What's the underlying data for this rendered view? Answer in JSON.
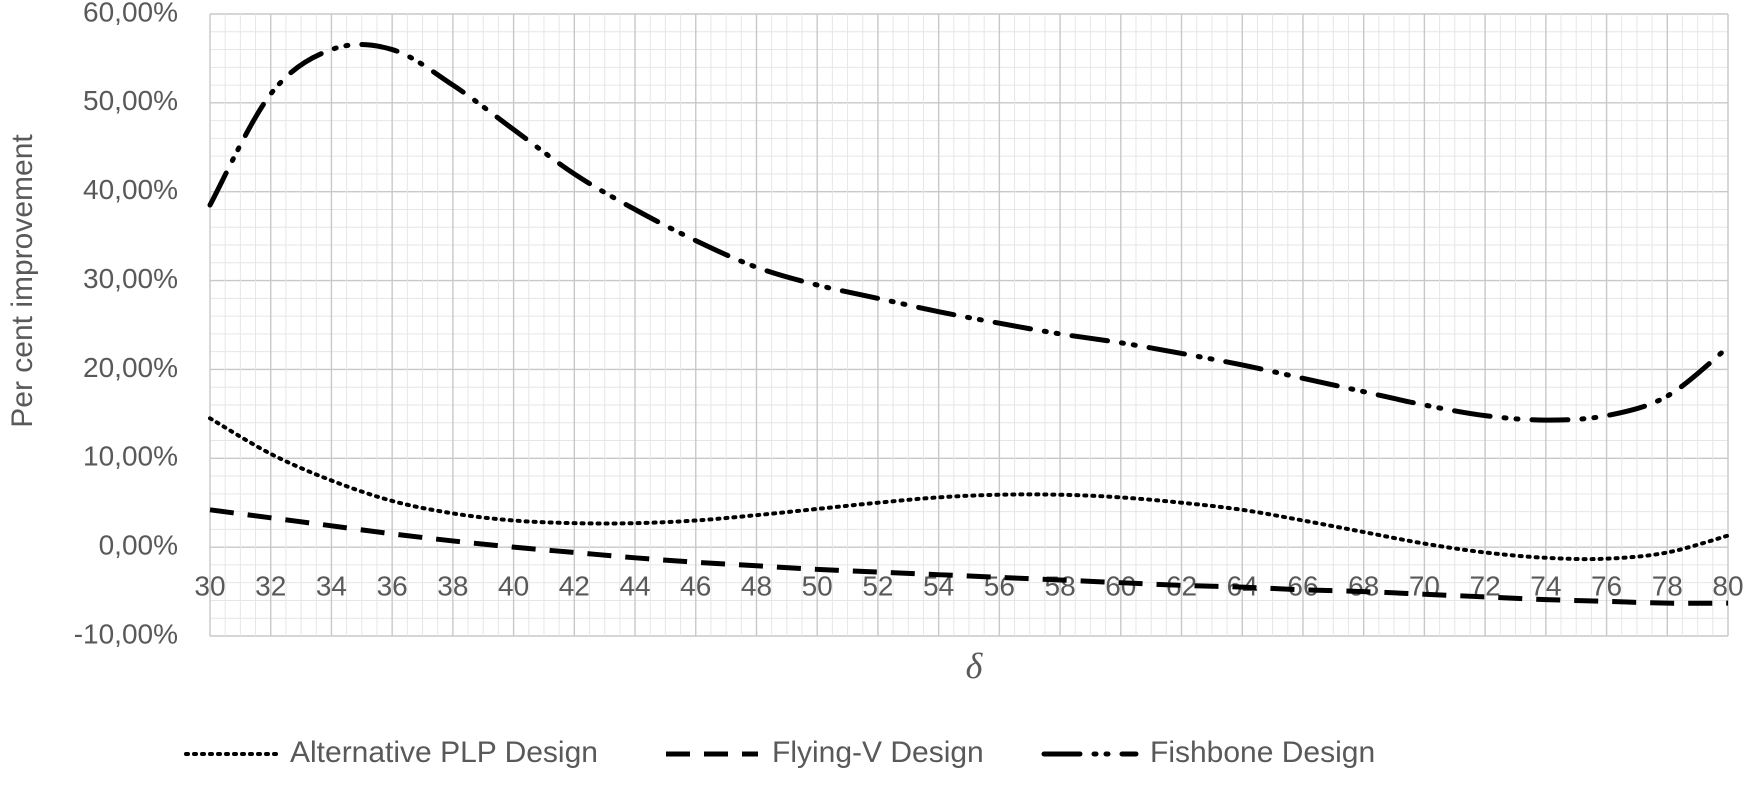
{
  "chart_data": {
    "type": "line",
    "title": "",
    "xlabel": "δ",
    "ylabel": "Per cent improvement",
    "xlim": [
      30,
      80
    ],
    "ylim": [
      -10,
      60
    ],
    "x_ticks": [
      "30",
      "32",
      "34",
      "36",
      "38",
      "40",
      "42",
      "44",
      "46",
      "48",
      "50",
      "52",
      "54",
      "56",
      "58",
      "60",
      "62",
      "64",
      "66",
      "68",
      "70",
      "72",
      "74",
      "76",
      "78",
      "80"
    ],
    "y_ticks": [
      "-10,00%",
      "0,00%",
      "10,00%",
      "20,00%",
      "30,00%",
      "40,00%",
      "50,00%",
      "60,00%"
    ],
    "y_tick_values": [
      -10,
      0,
      10,
      20,
      30,
      40,
      50,
      60
    ],
    "grid": true,
    "legend_position": "bottom",
    "x": [
      30,
      32,
      34,
      36,
      38,
      40,
      42,
      44,
      46,
      48,
      50,
      52,
      54,
      56,
      58,
      60,
      62,
      64,
      66,
      68,
      70,
      72,
      74,
      76,
      78,
      80
    ],
    "series": [
      {
        "name": "Alternative PLP Design",
        "style": "dotted",
        "color": "#000000",
        "values": [
          14.5,
          10.5,
          7.5,
          5.2,
          3.8,
          3.0,
          2.7,
          2.7,
          3.0,
          3.6,
          4.3,
          5.0,
          5.6,
          5.9,
          5.9,
          5.6,
          5.0,
          4.2,
          3.0,
          1.7,
          0.4,
          -0.6,
          -1.2,
          -1.3,
          -0.6,
          1.3
        ]
      },
      {
        "name": "Flying-V Design",
        "style": "dashed",
        "color": "#000000",
        "values": [
          4.2,
          3.3,
          2.4,
          1.5,
          0.7,
          0.0,
          -0.6,
          -1.2,
          -1.7,
          -2.1,
          -2.5,
          -2.8,
          -3.1,
          -3.4,
          -3.7,
          -4.0,
          -4.3,
          -4.5,
          -4.8,
          -5.0,
          -5.3,
          -5.6,
          -5.9,
          -6.1,
          -6.3,
          -6.3
        ]
      },
      {
        "name": "Fishbone Design",
        "style": "dash-dot-dot",
        "color": "#000000",
        "values": [
          38.5,
          51.0,
          56.0,
          56.0,
          52.0,
          47.0,
          42.0,
          38.0,
          34.5,
          31.5,
          29.5,
          28.0,
          26.5,
          25.2,
          24.0,
          23.0,
          21.8,
          20.5,
          19.0,
          17.5,
          16.0,
          14.8,
          14.3,
          14.8,
          17.0,
          22.5
        ]
      }
    ]
  }
}
